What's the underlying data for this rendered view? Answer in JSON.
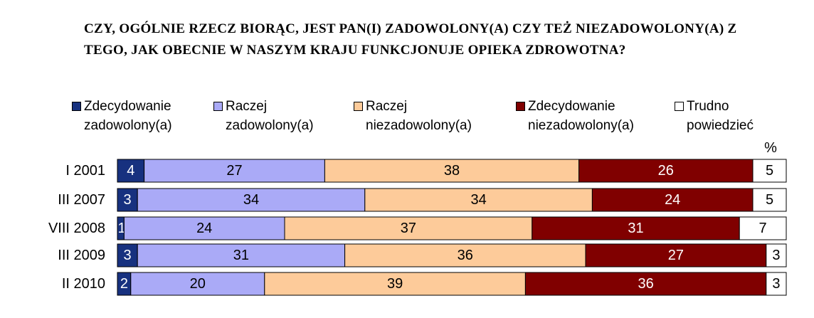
{
  "chart_data": {
    "type": "stacked-bar-horizontal",
    "title": "CZY, OGÓLNIE RZECZ BIORĄC, JEST PAN(I) ZADOWOLONY(A) CZY TEŻ NIEZADOWOLONY(A) Z TEGO, JAK OBECNIE W NASZYM KRAJU FUNKCJONUJE OPIEKA ZDROWOTNA?",
    "unit_label": "%",
    "categories": [
      "I 2001",
      "III 2007",
      "VIII 2008",
      "III 2009",
      "II 2010"
    ],
    "xlim": [
      0,
      100
    ],
    "series": [
      {
        "name": "Zdecydowanie zadowolony(a)",
        "color": "#17317f",
        "label_color": "#ffffff",
        "values": [
          4,
          3,
          1,
          3,
          2
        ]
      },
      {
        "name": "Raczej zadowolony(a)",
        "color": "#aaaaf7",
        "label_color": "#000000",
        "values": [
          27,
          34,
          24,
          31,
          20
        ]
      },
      {
        "name": "Raczej niezadowolony(a)",
        "color": "#fdcb9a",
        "label_color": "#000000",
        "values": [
          38,
          34,
          37,
          36,
          39
        ]
      },
      {
        "name": "Zdecydowanie niezadowolony(a)",
        "color": "#800000",
        "label_color": "#ffffff",
        "values": [
          26,
          24,
          31,
          27,
          36
        ]
      },
      {
        "name": "Trudno powiedzieć",
        "color": "#ffffff",
        "label_color": "#000000",
        "values": [
          5,
          5,
          7,
          3,
          3
        ]
      }
    ]
  }
}
